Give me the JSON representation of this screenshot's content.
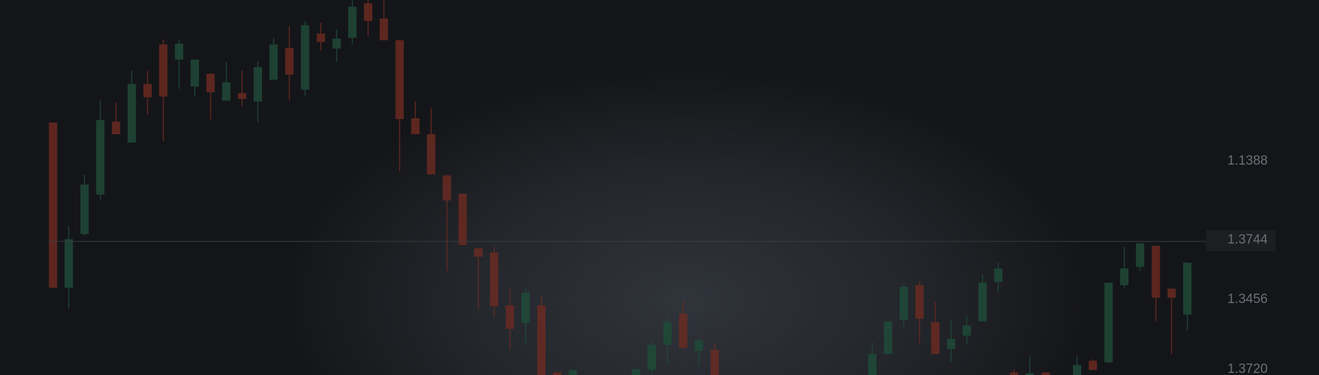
{
  "chart_data": {
    "type": "candlestick",
    "up_color": "#1f4b39",
    "down_color": "#6a2b22",
    "ylim": [
      0,
      447
    ],
    "open": [
      301,
      104,
      168,
      215,
      302,
      277,
      347,
      394,
      376,
      344,
      359,
      327,
      336,
      326,
      352,
      390,
      340,
      407,
      389,
      402,
      443,
      425,
      399,
      306,
      287,
      238,
      216,
      151,
      146,
      83,
      62,
      83,
      3,
      0,
      null,
      null,
      null,
      0,
      6,
      36,
      73,
      29,
      30,
      null,
      null,
      null,
      null,
      null,
      null,
      null,
      null,
      null,
      0,
      25,
      66,
      107,
      63,
      31,
      47,
      64,
      111,
      3,
      0,
      3,
      null,
      0,
      17,
      15,
      107,
      129,
      154,
      103,
      72
    ],
    "high": [
      301,
      177,
      239,
      327,
      325,
      363,
      363,
      400,
      400,
      376,
      359,
      373,
      363,
      374,
      402,
      416,
      422,
      420,
      412,
      447,
      447,
      447,
      399,
      326,
      319,
      238,
      216,
      151,
      153,
      102,
      105,
      95,
      3,
      6,
      null,
      null,
      null,
      7,
      40,
      69,
      89,
      44,
      38,
      null,
      null,
      null,
      null,
      null,
      null,
      null,
      null,
      null,
      39,
      64,
      109,
      112,
      87,
      65,
      70,
      120,
      134,
      7,
      23,
      3,
      null,
      23,
      19,
      110,
      153,
      157,
      154,
      103,
      134
    ],
    "low": [
      104,
      79,
      166,
      209,
      287,
      277,
      310,
      279,
      341,
      332,
      305,
      327,
      320,
      301,
      352,
      327,
      332,
      387,
      373,
      394,
      404,
      399,
      243,
      287,
      239,
      124,
      155,
      78,
      69,
      30,
      36,
      0,
      0,
      0,
      null,
      null,
      null,
      0,
      0,
      13,
      32,
      10,
      0,
      null,
      null,
      null,
      null,
      null,
      null,
      null,
      null,
      null,
      0,
      25,
      58,
      38,
      25,
      15,
      37,
      64,
      99,
      0,
      0,
      0,
      null,
      0,
      6,
      15,
      104,
      124,
      64,
      25,
      53
    ],
    "close": [
      104,
      162,
      227,
      304,
      287,
      347,
      331,
      332,
      395,
      376,
      337,
      349,
      329,
      367,
      394,
      358,
      417,
      397,
      401,
      439,
      422,
      399,
      305,
      287,
      239,
      208,
      155,
      141,
      82,
      55,
      98,
      0,
      0,
      6,
      null,
      null,
      null,
      7,
      36,
      63,
      32,
      41,
      0,
      null,
      null,
      null,
      null,
      null,
      null,
      null,
      null,
      null,
      25,
      64,
      105,
      67,
      25,
      43,
      59,
      110,
      127,
      0,
      2,
      0,
      null,
      12,
      6,
      110,
      127,
      157,
      92,
      92,
      134
    ],
    "price_labels": [
      "1.1388",
      "1.3456",
      "1.3720"
    ],
    "current_price_label": "1.3744"
  }
}
